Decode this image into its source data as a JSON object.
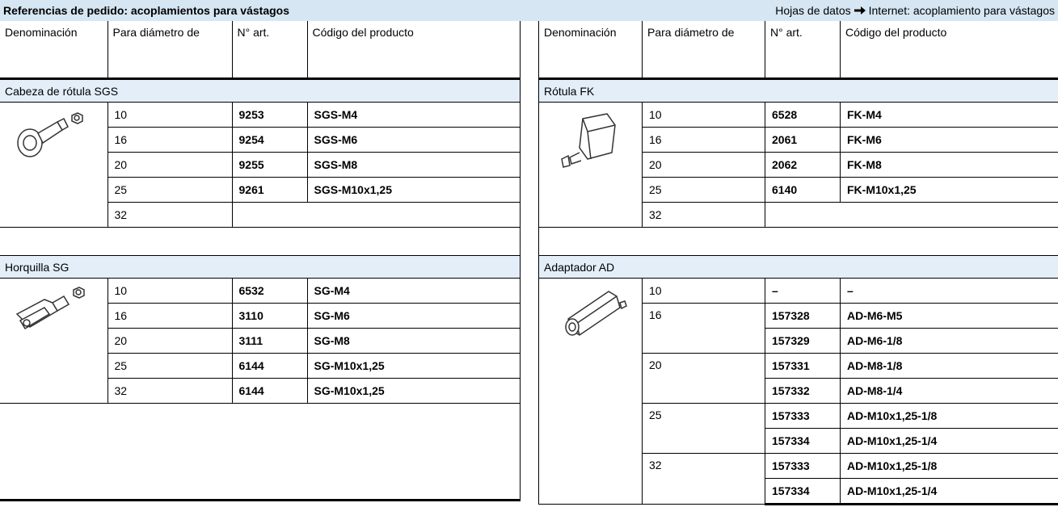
{
  "header": {
    "title": "Referencias de pedido: acoplamientos para vástagos",
    "links": [
      "Hojas de datos",
      "Internet: acoplamiento para vástagos"
    ]
  },
  "tables": [
    {
      "columns": [
        "Denominación",
        "Para diámetro de",
        "N° art.",
        "Código del producto"
      ],
      "groups": [
        {
          "name": "Cabeza de rótula SGS",
          "rows": [
            {
              "diameter": 10,
              "part": 9253,
              "code": "SGS-M4"
            },
            {
              "diameter": 16,
              "part": 9254,
              "code": "SGS-M6"
            },
            {
              "diameter": 20,
              "part": 9255,
              "code": "SGS-M8"
            },
            {
              "diameter": 25,
              "part": 9261,
              "code": "SGS-M10x1,25"
            },
            {
              "diameter": 32
            }
          ]
        },
        {
          "name": "Horquilla SG",
          "rows": [
            {
              "diameter": 10,
              "part": 6532,
              "code": "SG-M4"
            },
            {
              "diameter": 16,
              "part": 3110,
              "code": "SG-M6"
            },
            {
              "diameter": 20,
              "part": 3111,
              "code": "SG-M8"
            },
            {
              "diameter": 25,
              "part": 6144,
              "code": "SG-M10x1,25"
            },
            {
              "diameter": 32,
              "part": 6144,
              "code": "SG-M10x1,25"
            }
          ]
        }
      ]
    },
    {
      "columns": [
        "Denominación",
        "Para diámetro de",
        "N° art.",
        "Código del producto"
      ],
      "groups": [
        {
          "name": "Rótula FK",
          "rows": [
            {
              "diameter": 10,
              "part": 6528,
              "code": "FK-M4"
            },
            {
              "diameter": 16,
              "part": 2061,
              "code": "FK-M6"
            },
            {
              "diameter": 20,
              "part": 2062,
              "code": "FK-M8"
            },
            {
              "diameter": 25,
              "part": 6140,
              "code": "FK-M10x1,25"
            },
            {
              "diameter": 32
            }
          ]
        },
        {
          "name": "Adaptador AD",
          "rows": [
            {
              "diameter": 10,
              "part": "–",
              "code": "–"
            },
            {
              "diameter": 16,
              "part": 157328,
              "code": "AD-M6-M5"
            },
            {
              "part": 157329,
              "code": "AD-M6-1/8"
            },
            {
              "diameter": 20,
              "part": 157331,
              "code": "AD-M8-1/8"
            },
            {
              "part": 157332,
              "code": "AD-M8-1/4"
            },
            {
              "diameter": 25,
              "part": 157333,
              "code": "AD-M10x1,25-1/8"
            },
            {
              "part": 157334,
              "code": "AD-M10x1,25-1/4"
            },
            {
              "diameter": 32,
              "part": 157333,
              "code": "AD-M10x1,25-1/8"
            },
            {
              "part": 157334,
              "code": "AD-M10x1,25-1/4"
            }
          ]
        }
      ]
    }
  ]
}
